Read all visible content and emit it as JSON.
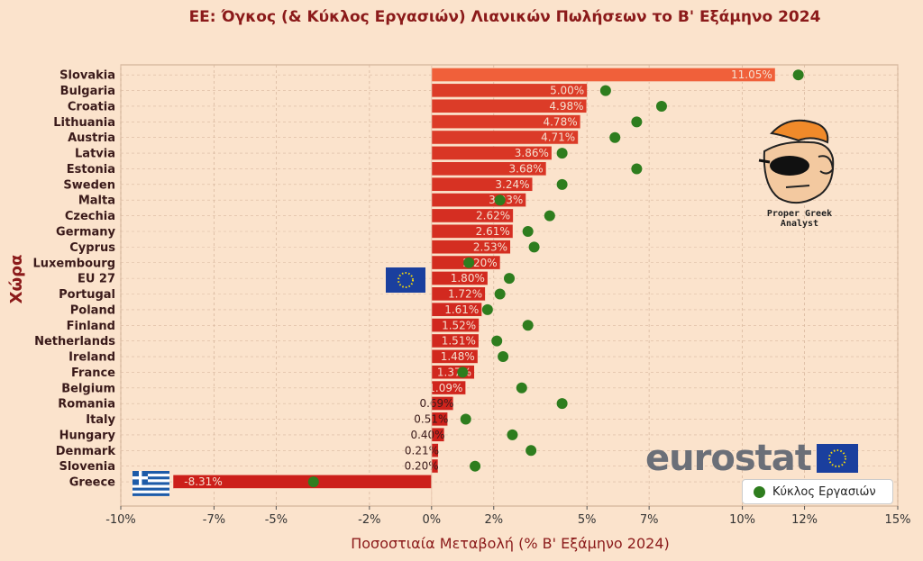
{
  "title": "ΕΕ: Όγκος (& Κύκλος Εργασιών) Λιανικών Πωλήσεων το Β' Εξάμηνο 2024",
  "xlabel": "Ποσοστιαία Μεταβολή (% Β' Εξάμηνο 2024)",
  "ylabel": "Χώρα",
  "legend_label": "Κύκλος Εργασιών",
  "eurostat_text": "eurostat",
  "analyst_caption": "Proper Greek Analyst",
  "colors": {
    "bar_dark": "#cc1f1a",
    "bar_light": "#f0603a",
    "dot": "#2e7d1e",
    "grid": "#d9b9a0",
    "zero_line": "#e8c8b0"
  },
  "chart_data": {
    "type": "bar",
    "orientation": "horizontal",
    "title": "ΕΕ: Όγκος (& Κύκλος Εργασιών) Λιανικών Πωλήσεων το Β' Εξάμηνο 2024",
    "xlabel": "Ποσοστιαία Μεταβολή (% Β' Εξάμηνο 2024)",
    "ylabel": "Χώρα",
    "xlim": [
      -10,
      15
    ],
    "xticks": [
      -10,
      -7,
      -5,
      -2,
      0,
      2,
      5,
      7,
      10,
      12,
      15
    ],
    "xtick_labels": [
      "-10%",
      "-7%",
      "-5%",
      "-2%",
      "0%",
      "2%",
      "5%",
      "7%",
      "10%",
      "12%",
      "15%"
    ],
    "grid": true,
    "legend_position": "bottom-right",
    "categories": [
      "Slovakia",
      "Bulgaria",
      "Croatia",
      "Lithuania",
      "Austria",
      "Latvia",
      "Estonia",
      "Sweden",
      "Malta",
      "Czechia",
      "Germany",
      "Cyprus",
      "Luxembourg",
      "EU 27",
      "Portugal",
      "Poland",
      "Finland",
      "Netherlands",
      "Ireland",
      "France",
      "Belgium",
      "Romania",
      "Italy",
      "Hungary",
      "Denmark",
      "Slovenia",
      "Greece"
    ],
    "value_labels": [
      "11.05%",
      "5.00%",
      "4.98%",
      "4.78%",
      "4.71%",
      "3.86%",
      "3.68%",
      "3.24%",
      "3.03%",
      "2.62%",
      "2.61%",
      "2.53%",
      "2.20%",
      "1.80%",
      "1.72%",
      "1.61%",
      "1.52%",
      "1.51%",
      "1.48%",
      "1.37%",
      "1.09%",
      "0.69%",
      "0.51%",
      "0.40%",
      "0.21%",
      "0.20%",
      "-8.31%"
    ],
    "series": [
      {
        "values": [
          11.05,
          5.0,
          4.98,
          4.78,
          4.71,
          3.86,
          3.68,
          3.24,
          3.03,
          2.62,
          2.61,
          2.53,
          2.2,
          1.8,
          1.72,
          1.61,
          1.52,
          1.51,
          1.48,
          1.37,
          1.09,
          0.69,
          0.51,
          0.4,
          0.21,
          0.2,
          -8.31
        ]
      },
      {
        "name": "Κύκλος Εργασιών",
        "type": "scatter",
        "values": [
          11.8,
          5.6,
          7.4,
          6.6,
          5.9,
          4.2,
          6.6,
          4.2,
          2.2,
          3.8,
          3.1,
          3.3,
          1.2,
          2.5,
          2.2,
          1.8,
          3.1,
          2.1,
          2.3,
          1.0,
          2.9,
          4.2,
          1.1,
          2.6,
          3.2,
          1.4,
          -3.8
        ]
      }
    ]
  }
}
